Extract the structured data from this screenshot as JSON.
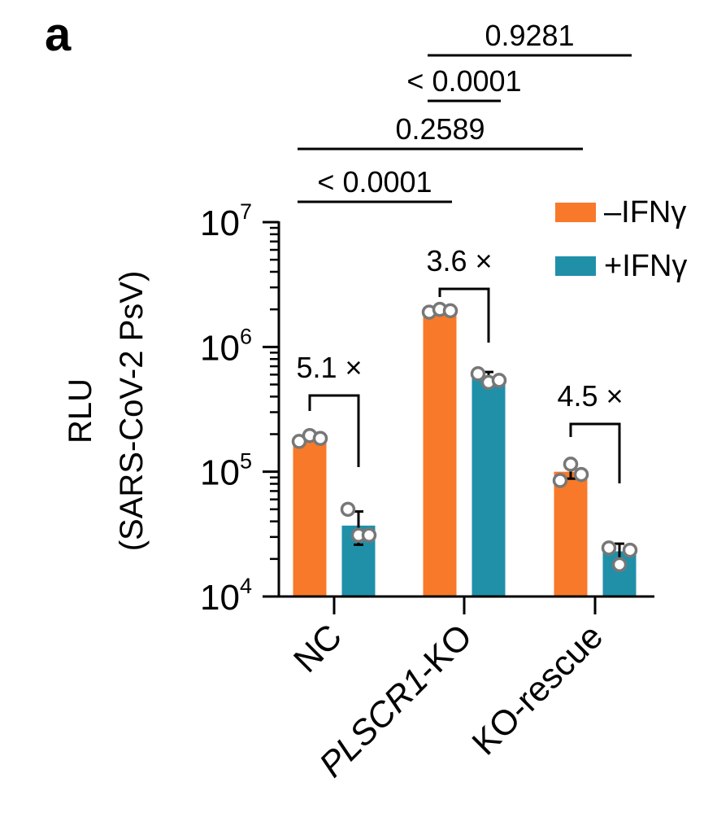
{
  "panel_label": "a",
  "legend": [
    {
      "label": "–IFNγ",
      "color": "#f8792a"
    },
    {
      "label": "+IFNγ",
      "color": "#2090a9"
    }
  ],
  "colors": {
    "minus": "#f8792a",
    "plus": "#2090a9",
    "point_edge": "#777777",
    "axis": "#000000"
  },
  "chart_data": {
    "type": "bar",
    "title": "",
    "ylabel_line1": "RLU",
    "ylabel_line2": "(SARS-CoV-2 PsV)",
    "xlabel": "",
    "yscale": "log",
    "ylim": [
      10000,
      10000000
    ],
    "ytick_base": "10",
    "yticks": [
      {
        "value": 10000,
        "exp": "4"
      },
      {
        "value": 100000,
        "exp": "5"
      },
      {
        "value": 1000000,
        "exp": "6"
      },
      {
        "value": 10000000,
        "exp": "7"
      }
    ],
    "categories": [
      "NC",
      "PLSCR1-KO",
      "KO-rescue"
    ],
    "category_italic": [
      false,
      true,
      false
    ],
    "category_italic_part": [
      "",
      "PLSCR1",
      ""
    ],
    "category_plain_part": [
      "NC",
      "-KO",
      "KO-rescue"
    ],
    "series": [
      {
        "name": "–IFNγ",
        "values": [
          185000,
          1950000,
          100000
        ],
        "errors": [
          null,
          null,
          12000
        ],
        "points": [
          [
            175000,
            195000,
            185000
          ],
          [
            1900000,
            2000000,
            1950000
          ],
          [
            85000,
            115000,
            95000
          ]
        ]
      },
      {
        "name": "+IFNγ",
        "values": [
          37000,
          560000,
          23000
        ],
        "errors": [
          11000,
          70000,
          3500
        ],
        "points": [
          [
            50000,
            31000,
            31000
          ],
          [
            610000,
            520000,
            540000
          ],
          [
            24500,
            18000,
            23500
          ]
        ]
      }
    ],
    "fold_changes": [
      {
        "category": 0,
        "label": "5.1 ×"
      },
      {
        "category": 1,
        "label": "3.6 ×"
      },
      {
        "category": 2,
        "label": "4.5 ×"
      }
    ],
    "comparisons": [
      {
        "from": [
          0,
          0
        ],
        "to": [
          1,
          0
        ],
        "label": "< 0.0001",
        "level": 0
      },
      {
        "from": [
          0,
          0
        ],
        "to": [
          2,
          0
        ],
        "label": "0.2589",
        "level": 1
      },
      {
        "from": [
          1,
          0
        ],
        "to": [
          1,
          1
        ],
        "label": "< 0.0001",
        "level": 2
      },
      {
        "from": [
          1,
          0
        ],
        "to": [
          2,
          1
        ],
        "label": "0.9281",
        "level": 3
      }
    ]
  }
}
